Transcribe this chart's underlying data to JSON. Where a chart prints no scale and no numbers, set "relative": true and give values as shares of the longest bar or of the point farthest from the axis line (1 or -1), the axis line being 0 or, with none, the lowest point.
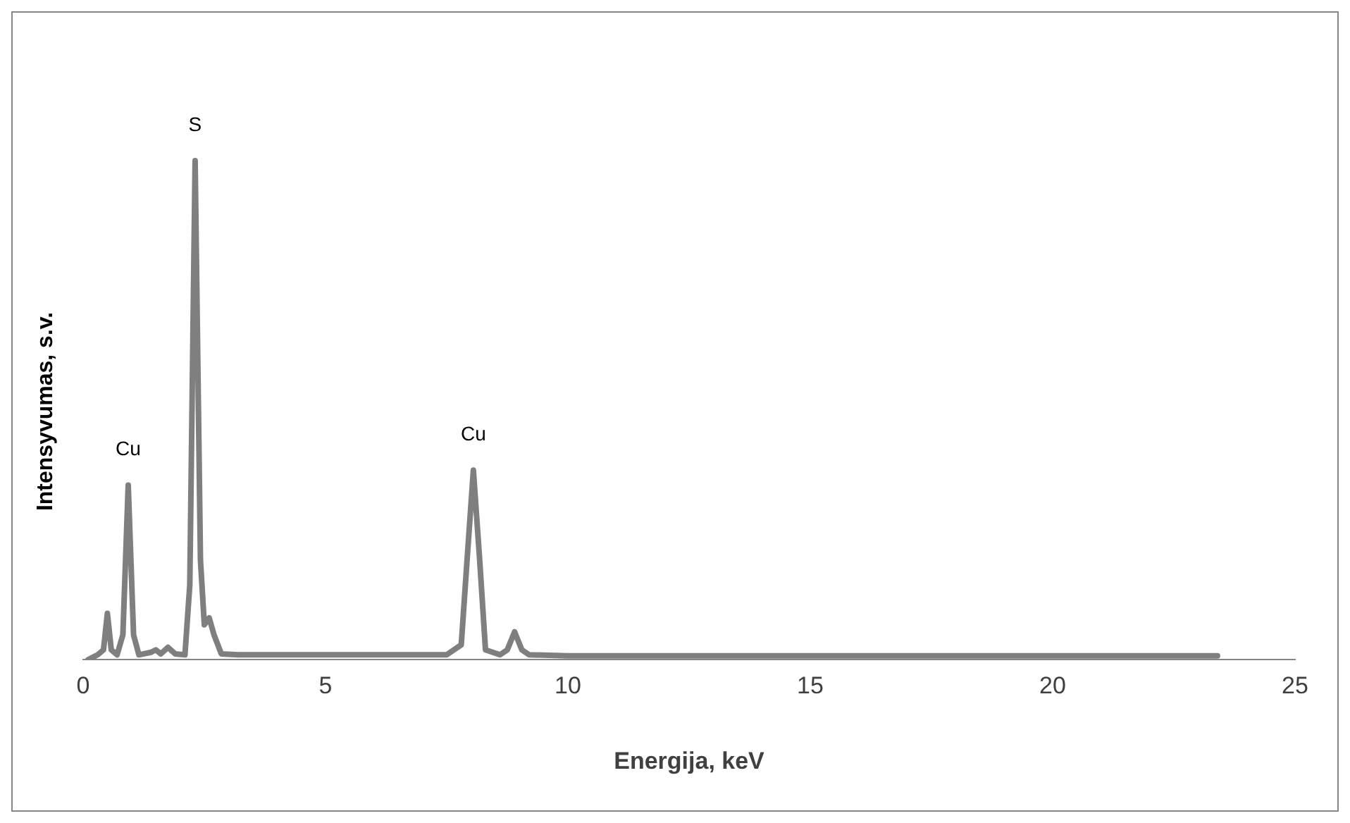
{
  "chart_data": {
    "type": "line",
    "relative": true,
    "xlabel": "Energija, keV",
    "ylabel": "Intensyvumas, s.v.",
    "xlim": [
      0,
      25
    ],
    "xticks": [
      0,
      5,
      10,
      15,
      20,
      25
    ],
    "grid": false,
    "legend": false,
    "marker": "none",
    "line_style": "solid",
    "series": [
      {
        "color": "#7f7f7f",
        "x": [
          0.1,
          0.3,
          0.42,
          0.5,
          0.58,
          0.7,
          0.82,
          0.93,
          1.04,
          1.15,
          1.4,
          1.5,
          1.6,
          1.75,
          1.9,
          2.1,
          2.2,
          2.31,
          2.42,
          2.5,
          2.6,
          2.7,
          2.85,
          3.2,
          5,
          7.5,
          7.8,
          7.92,
          8.05,
          8.18,
          8.3,
          8.6,
          8.75,
          8.9,
          9.05,
          9.2,
          10,
          15,
          20,
          23.4
        ],
        "values": [
          0,
          0.01,
          0.02,
          0.093,
          0.02,
          0.01,
          0.05,
          0.35,
          0.05,
          0.01,
          0.015,
          0.02,
          0.012,
          0.025,
          0.012,
          0.01,
          0.15,
          1,
          0.2,
          0.07,
          0.084,
          0.05,
          0.012,
          0.01,
          0.01,
          0.01,
          0.03,
          0.2,
          0.38,
          0.2,
          0.02,
          0.01,
          0.02,
          0.056,
          0.02,
          0.01,
          0.008,
          0.008,
          0.008,
          0.008
        ]
      }
    ],
    "annotations": [
      {
        "text": "Cu",
        "x": 0.93,
        "y": 0.35
      },
      {
        "text": "S",
        "x": 2.31,
        "y": 1
      },
      {
        "text": "Cu",
        "x": 8.05,
        "y": 0.38
      }
    ]
  }
}
